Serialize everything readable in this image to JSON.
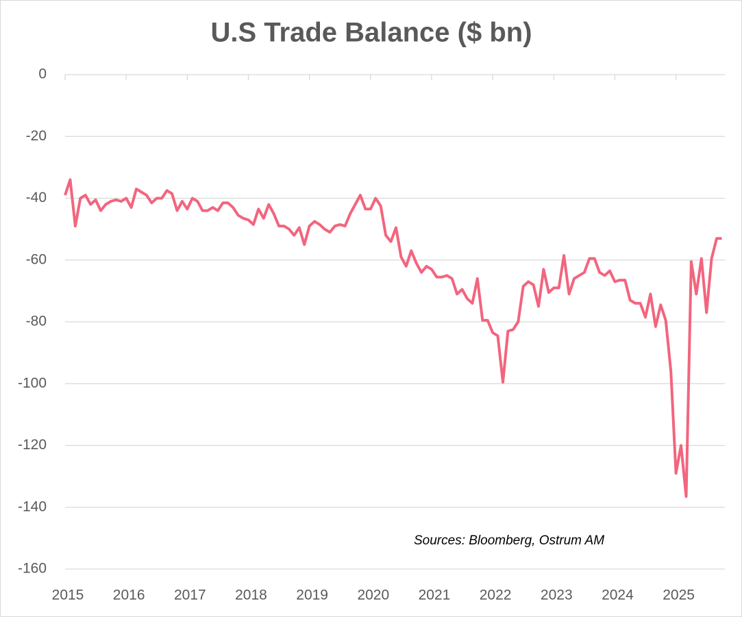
{
  "chart_data": {
    "type": "line",
    "title": "U.S Trade Balance  ($ bn)",
    "annotation": "Sources: Bloomberg, Ostrum AM",
    "categories": [
      "2015",
      null,
      null,
      null,
      null,
      null,
      null,
      null,
      null,
      null,
      null,
      null,
      "2016",
      null,
      null,
      null,
      null,
      null,
      null,
      null,
      null,
      null,
      null,
      null,
      "2017",
      null,
      null,
      null,
      null,
      null,
      null,
      null,
      null,
      null,
      null,
      null,
      "2018",
      null,
      null,
      null,
      null,
      null,
      null,
      null,
      null,
      null,
      null,
      null,
      "2019",
      null,
      null,
      null,
      null,
      null,
      null,
      null,
      null,
      null,
      null,
      null,
      "2020",
      null,
      null,
      null,
      null,
      null,
      null,
      null,
      null,
      null,
      null,
      null,
      "2021",
      null,
      null,
      null,
      null,
      null,
      null,
      null,
      null,
      null,
      null,
      null,
      "2022",
      null,
      null,
      null,
      null,
      null,
      null,
      null,
      null,
      null,
      null,
      null,
      "2023",
      null,
      null,
      null,
      null,
      null,
      null,
      null,
      null,
      null,
      null,
      null,
      "2024",
      null,
      null,
      null,
      null,
      null,
      null,
      null,
      null,
      null,
      null,
      null,
      "2025",
      null,
      null,
      null,
      null,
      null,
      null,
      null,
      null,
      null
    ],
    "series": [
      {
        "name": "U.S Trade Balance",
        "color": "#f2657e",
        "values": [
          -39,
          -34,
          -49,
          -40,
          -39,
          -42,
          -40.5,
          -44,
          -42,
          -41,
          -40.5,
          -41,
          -40,
          -43,
          -37,
          -38,
          -39,
          -41.5,
          -40,
          -40,
          -37.5,
          -38.5,
          -44,
          -41,
          -43.5,
          -40,
          -41,
          -44,
          -44,
          -43,
          -44,
          -41.5,
          -41.5,
          -43,
          -45.5,
          -46.5,
          -47,
          -48.5,
          -43.5,
          -46.5,
          -42,
          -45,
          -49,
          -49,
          -50,
          -52,
          -49.5,
          -55,
          -49,
          -47.5,
          -48.5,
          -50,
          -51,
          -49,
          -48.5,
          -49,
          -45,
          -42,
          -39,
          -43.5,
          -43.5,
          -40,
          -42.5,
          -52,
          -54,
          -49.5,
          -59,
          -62,
          -57,
          -61,
          -64,
          -62,
          -63,
          -65.5,
          -65.5,
          -65,
          -66,
          -71,
          -69.5,
          -72.5,
          -74,
          -66,
          -79.5,
          -79.5,
          -83.5,
          -84.5,
          -99.5,
          -83,
          -82.5,
          -80,
          -68.5,
          -67,
          -68,
          -75,
          -63,
          -70.5,
          -69,
          -69,
          -58.5,
          -71,
          -66,
          -65,
          -64,
          -59.5,
          -59.5,
          -64,
          -65,
          -63.5,
          -67,
          -66.5,
          -66.5,
          -73,
          -74,
          -74,
          -78.5,
          -71,
          -81.5,
          -74.5,
          -79.5,
          -96,
          -129,
          -120,
          -136.5,
          -60.5,
          -71,
          -59.5,
          -77,
          -59.5,
          -53,
          -53
        ]
      }
    ],
    "ylim": [
      -160,
      0
    ],
    "yticks": [
      0,
      -20,
      -40,
      -60,
      -80,
      -100,
      -120,
      -140,
      -160
    ],
    "grid": true
  }
}
